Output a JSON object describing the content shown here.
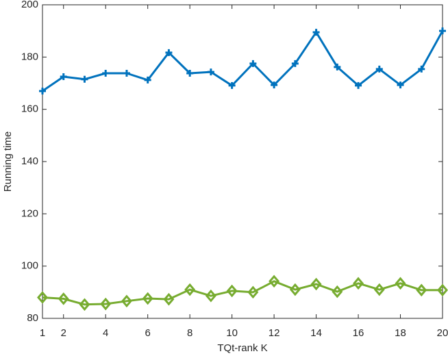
{
  "chart_data": {
    "type": "line",
    "x_label": "TQt-rank K",
    "y_label": "Running time",
    "x": [
      1,
      2,
      3,
      4,
      5,
      6,
      7,
      8,
      9,
      10,
      11,
      12,
      13,
      14,
      15,
      16,
      17,
      18,
      19,
      20
    ],
    "series": [
      {
        "color": "#0072bd",
        "marker": "plus",
        "values": [
          167,
          172.5,
          171.5,
          173.8,
          173.8,
          171.2,
          181.7,
          173.8,
          174.3,
          169.1,
          177.5,
          169.3,
          177.5,
          189.5,
          176.2,
          169.1,
          175.4,
          169.3,
          175.4,
          190
        ]
      },
      {
        "color": "#77ac30",
        "marker": "diamond",
        "values": [
          88,
          87.5,
          85.3,
          85.5,
          86.6,
          87.6,
          87.3,
          91,
          88.6,
          90.5,
          90,
          94.2,
          91,
          93.1,
          90.2,
          93.4,
          91,
          93.4,
          90.8,
          90.8
        ]
      }
    ],
    "xlim": [
      1,
      20
    ],
    "xticks": [
      1,
      2,
      4,
      6,
      8,
      10,
      12,
      14,
      16,
      18,
      20
    ],
    "ylim": [
      80,
      200
    ],
    "yticks": [
      80,
      100,
      120,
      140,
      160,
      180,
      200
    ],
    "grid": false
  }
}
